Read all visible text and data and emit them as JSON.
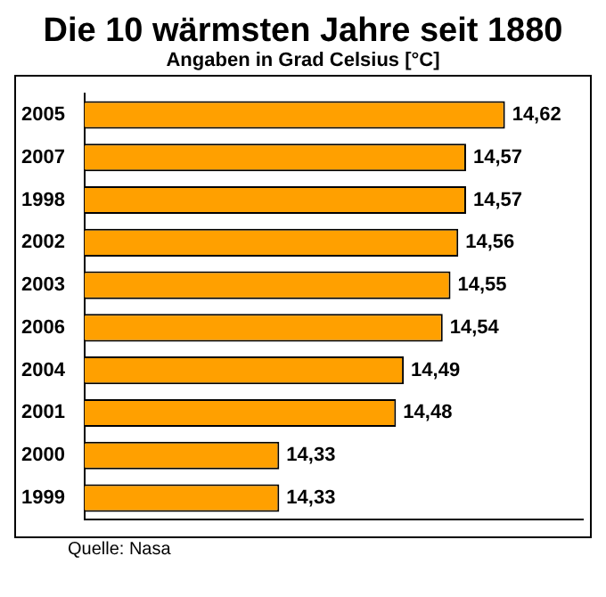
{
  "chart_data": {
    "type": "bar",
    "orientation": "horizontal",
    "title": "Die 10 wärmsten Jahre seit 1880",
    "subtitle": "Angaben in Grad Celsius [°C]",
    "categories": [
      "2005",
      "2007",
      "1998",
      "2002",
      "2003",
      "2006",
      "2004",
      "2001",
      "2000",
      "1999"
    ],
    "values": [
      14.62,
      14.57,
      14.57,
      14.56,
      14.55,
      14.54,
      14.49,
      14.48,
      14.33,
      14.33
    ],
    "value_labels": [
      "14,62",
      "14,57",
      "14,57",
      "14,56",
      "14,55",
      "14,54",
      "14,49",
      "14,48",
      "14,33",
      "14,33"
    ],
    "color": "#ffa000",
    "xlim": [
      14.08,
      14.72
    ],
    "tick_labels": "y",
    "legend": false,
    "annotations": [
      "Quelle: Nasa"
    ]
  }
}
